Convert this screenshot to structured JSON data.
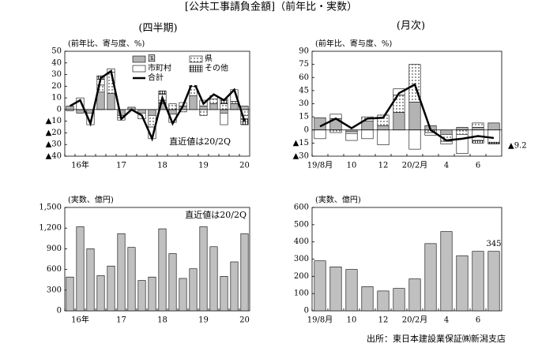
{
  "title": "[公共工事請負金額]（前年比・実数）",
  "source": "出所：東日本建設業保証㈱新潟支店",
  "chart_data": [
    {
      "type": "bar",
      "title": "(四半期)",
      "y_label": "(前年比、寄与度、%)",
      "annotation": "直近値は20/2Q",
      "legend": "upper right",
      "categories": [
        null,
        "16年",
        null,
        null,
        null,
        "17",
        null,
        null,
        null,
        "18",
        null,
        null,
        null,
        "19",
        null,
        null,
        null,
        "20"
      ],
      "ylim": [
        -40,
        50
      ],
      "yticks": [
        {
          "value": -40,
          "label": "▲40"
        },
        {
          "value": -30,
          "label": "▲30"
        },
        {
          "value": -20,
          "label": "▲20"
        },
        {
          "value": -10,
          "label": "▲10"
        },
        0,
        10,
        20,
        30,
        40,
        50
      ],
      "series": [
        {
          "name": "国",
          "color": "#b3b3b3",
          "values": [
            3,
            -3,
            -3,
            15,
            14,
            -5,
            2,
            -3,
            -5,
            5,
            -4,
            3,
            12,
            3,
            5,
            -3,
            5,
            3
          ]
        },
        {
          "name": "県",
          "color": "#ffffff",
          "pattern": "dots",
          "values": [
            0,
            0,
            0,
            6,
            18,
            -2,
            0,
            0,
            -10,
            3,
            5,
            -2,
            8,
            -5,
            4,
            5,
            2,
            -5
          ]
        },
        {
          "name": "市町村",
          "color": "#ffffff",
          "values": [
            -1,
            10,
            -10,
            5,
            3,
            -2,
            0,
            -5,
            -10,
            5,
            -7,
            3,
            5,
            5,
            3,
            -10,
            10,
            -3
          ]
        },
        {
          "name": "その他",
          "color": "#ffffff",
          "pattern": "hatch",
          "values": [
            0,
            0,
            0,
            3,
            0,
            0,
            0,
            0,
            0,
            3,
            0,
            0,
            0,
            0,
            0,
            4,
            0,
            -5
          ]
        },
        {
          "name": "合計",
          "color": "#000000",
          "type": "line",
          "values": [
            3,
            8,
            -12,
            27,
            33,
            -8,
            0,
            -5,
            -25,
            10,
            -12,
            3,
            25,
            5,
            13,
            8,
            17,
            -10
          ]
        }
      ]
    },
    {
      "type": "bar",
      "title": "(月次)",
      "y_label": "(前年比、寄与度、%)",
      "categories": [
        "19/8月",
        null,
        "10",
        null,
        "12",
        null,
        "20/2月",
        null,
        "4",
        null,
        "6",
        null
      ],
      "ylim": [
        -30,
        90
      ],
      "yticks": [
        {
          "value": -30,
          "label": "▲30"
        },
        {
          "value": -15,
          "label": "▲15"
        },
        0,
        15,
        30,
        45,
        60,
        75,
        90
      ],
      "series": [
        {
          "name": "国",
          "color": "#b3b3b3",
          "values": [
            14,
            13,
            -2,
            10,
            5,
            20,
            32,
            5,
            -5,
            3,
            3,
            8
          ]
        },
        {
          "name": "県",
          "color": "#ffffff",
          "pattern": "dots",
          "values": [
            0,
            -3,
            -2,
            5,
            12,
            20,
            43,
            -3,
            -8,
            -5,
            5,
            0
          ]
        },
        {
          "name": "市町村",
          "color": "#ffffff",
          "values": [
            -10,
            5,
            -8,
            -10,
            -17,
            7,
            -22,
            -3,
            -3,
            -22,
            -12,
            -14
          ]
        },
        {
          "name": "その他",
          "color": "#ffffff",
          "pattern": "hatch",
          "values": [
            0,
            0,
            0,
            0,
            0,
            0,
            0,
            0,
            0,
            0,
            -3,
            -2
          ]
        },
        {
          "name": "合計",
          "color": "#000000",
          "type": "line",
          "values": [
            4,
            13,
            2,
            13,
            14,
            42,
            52,
            0,
            -12,
            -10,
            -7,
            -9.2
          ],
          "value_labels": [
            null,
            null,
            null,
            null,
            null,
            null,
            null,
            null,
            null,
            null,
            null,
            "▲9.2"
          ]
        }
      ]
    },
    {
      "type": "bar",
      "y_label": "(実数、億円)",
      "annotation": "直近値は20/2Q",
      "color": "#c0c0c0",
      "categories": [
        null,
        "16年",
        null,
        null,
        null,
        "17",
        null,
        null,
        null,
        "18",
        null,
        null,
        null,
        "19",
        null,
        null,
        null,
        "20"
      ],
      "values": [
        490,
        1220,
        900,
        510,
        650,
        1120,
        920,
        440,
        490,
        1190,
        830,
        470,
        610,
        1220,
        930,
        500,
        710,
        1120
      ],
      "ylim": [
        0,
        1500
      ],
      "yticks": [
        0,
        300,
        600,
        900,
        {
          "value": 1200,
          "label": "1,200"
        },
        {
          "value": 1500,
          "label": "1,500"
        }
      ]
    },
    {
      "type": "bar",
      "y_label": "(実数、億円)",
      "color": "#c0c0c0",
      "categories": [
        "19/8月",
        null,
        "10",
        null,
        "12",
        null,
        "20/2月",
        null,
        "4",
        null,
        "6",
        null
      ],
      "values": [
        290,
        255,
        240,
        140,
        115,
        130,
        185,
        390,
        460,
        320,
        345,
        345
      ],
      "value_labels": [
        null,
        null,
        null,
        null,
        null,
        null,
        null,
        null,
        null,
        null,
        null,
        "345"
      ],
      "ylim": [
        0,
        600
      ],
      "yticks": [
        0,
        100,
        200,
        300,
        400,
        500,
        600
      ]
    }
  ]
}
